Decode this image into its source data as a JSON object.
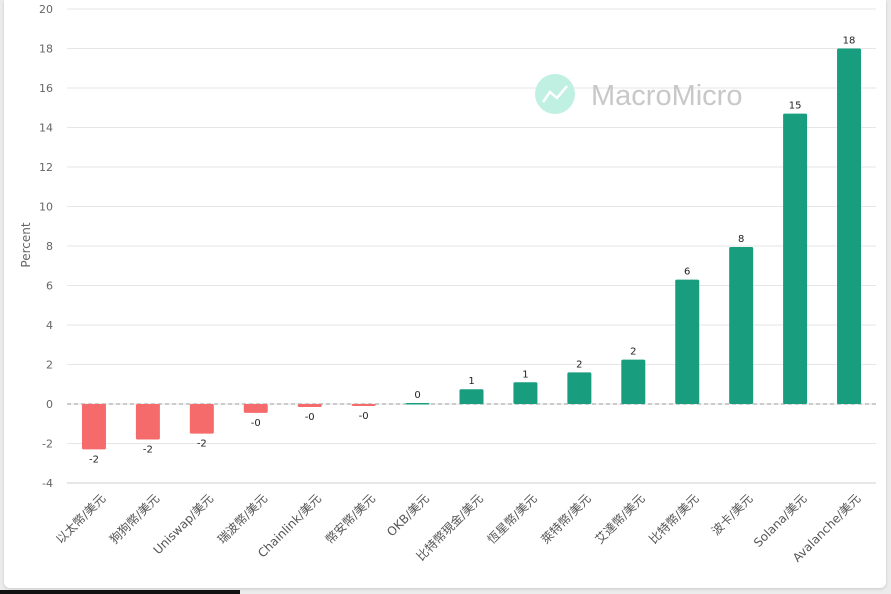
{
  "chart_data": {
    "type": "bar",
    "ylabel": "Percent",
    "ylim": [
      -4,
      20
    ],
    "yticks": [
      -4,
      -2,
      0,
      2,
      4,
      6,
      8,
      10,
      12,
      14,
      16,
      18,
      20
    ],
    "grid": true,
    "categories": [
      "以太幣/美元",
      "狗狗幣/美元",
      "Uniswap/美元",
      "瑞波幣/美元",
      "Chainlink/美元",
      "幣安幣/美元",
      "OKB/美元",
      "比特幣現金/美元",
      "恆星幣/美元",
      "萊特幣/美元",
      "艾達幣/美元",
      "比特幣/美元",
      "波卡/美元",
      "Solana/美元",
      "Avalanche/美元"
    ],
    "values": [
      -2.3,
      -1.8,
      -1.5,
      -0.45,
      -0.15,
      -0.1,
      0.05,
      0.75,
      1.1,
      1.6,
      2.25,
      6.3,
      7.95,
      14.7,
      18.0
    ],
    "data_labels": [
      "-2",
      "-2",
      "-2",
      "-0",
      "-0",
      "-0",
      "0",
      "1",
      "1",
      "2",
      "2",
      "6",
      "8",
      "15",
      "18"
    ],
    "positive_color": "#189e7e",
    "negative_color": "#f56b6b"
  },
  "watermark": {
    "text": "MacroMicro"
  }
}
